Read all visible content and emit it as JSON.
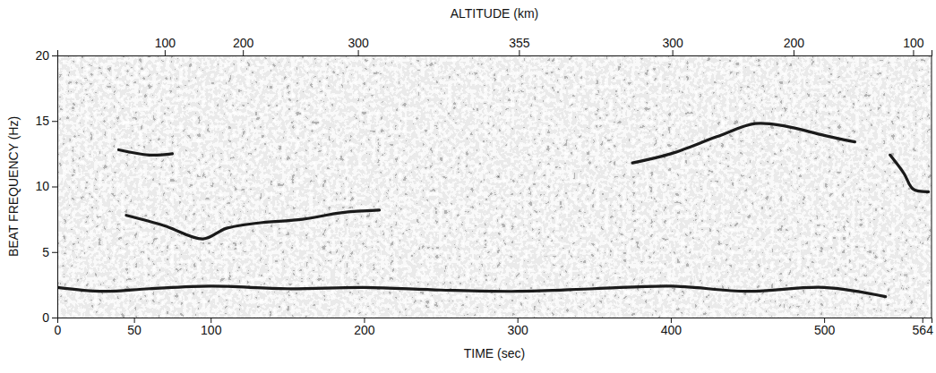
{
  "chart_data": {
    "type": "line",
    "x_label": "TIME (sec)",
    "y_label": "BEAT FREQUENCY (Hz)",
    "xlim": [
      0,
      570
    ],
    "xticks": [
      0,
      50,
      100,
      200,
      300,
      400,
      500,
      564
    ],
    "ylim": [
      0,
      20
    ],
    "yticks": [
      0,
      5,
      10,
      15,
      20
    ],
    "top_axis": {
      "label": "ALTITUDE (km)",
      "ticks": [
        {
          "value": 70,
          "label": "100"
        },
        {
          "value": 121,
          "label": "200"
        },
        {
          "value": 196,
          "label": "300"
        },
        {
          "value": 301,
          "label": "355"
        },
        {
          "value": 401,
          "label": "300"
        },
        {
          "value": 480,
          "label": "200"
        },
        {
          "value": 558,
          "label": "100"
        }
      ]
    },
    "series": [
      {
        "color": "#1a1a1a",
        "x": [
          0,
          30,
          60,
          100,
          150,
          200,
          250,
          300,
          350,
          400,
          450,
          500,
          540
        ],
        "values": [
          2.3,
          2.0,
          2.2,
          2.4,
          2.2,
          2.3,
          2.1,
          2.0,
          2.2,
          2.4,
          2.0,
          2.3,
          1.6
        ]
      },
      {
        "color": "#1a1a1a",
        "x": [
          45,
          70,
          95,
          110,
          130,
          160,
          185,
          210
        ],
        "values": [
          7.8,
          7.0,
          6.0,
          6.8,
          7.2,
          7.5,
          8.0,
          8.2
        ]
      },
      {
        "color": "#1a1a1a",
        "x": [
          40,
          60,
          75
        ],
        "values": [
          12.8,
          12.4,
          12.5
        ]
      },
      {
        "color": "#1a1a1a",
        "x": [
          375,
          400,
          430,
          455,
          475,
          500,
          520
        ],
        "values": [
          11.8,
          12.5,
          13.8,
          14.8,
          14.6,
          13.9,
          13.4
        ]
      },
      {
        "color": "#1a1a1a",
        "x": [
          543,
          552,
          558,
          568
        ],
        "values": [
          12.4,
          11.0,
          9.8,
          9.6
        ]
      }
    ]
  }
}
